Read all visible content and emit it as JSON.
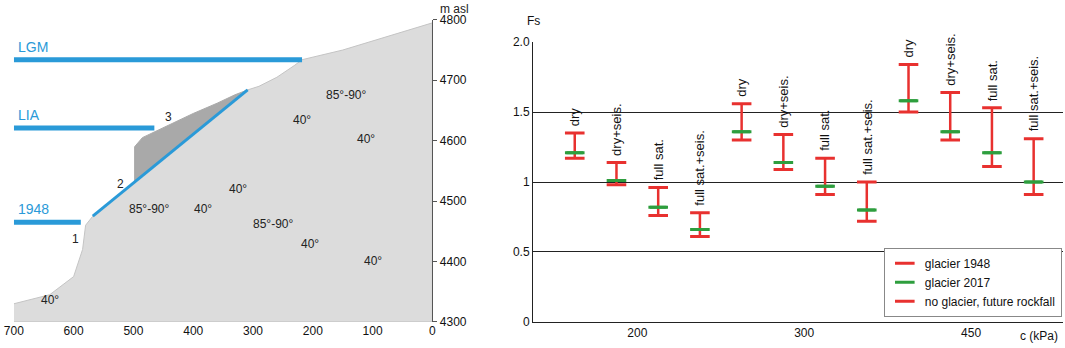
{
  "chart_data": [
    {
      "type": "profile",
      "y_label": "m asl",
      "xlim": [
        700,
        0
      ],
      "xticks": [
        700,
        600,
        500,
        400,
        300,
        200,
        100,
        0
      ],
      "ylim": [
        4300,
        4800
      ],
      "yticks": [
        4300,
        4400,
        4500,
        4600,
        4700,
        4800
      ],
      "terrain": {
        "color": "#dcdcdc",
        "x": [
          700,
          640,
          600,
          585,
          580,
          568,
          498,
          309,
          290,
          260,
          230,
          218,
          150,
          100,
          50,
          0,
          0,
          700
        ],
        "y": [
          4330,
          4345,
          4375,
          4420,
          4460,
          4475,
          4531,
          4684,
          4690,
          4705,
          4725,
          4734,
          4750,
          4765,
          4780,
          4795,
          4300,
          4300
        ]
      },
      "rock_mass": {
        "color": "#a9a9a9",
        "x": [
          498,
          498,
          485,
          470,
          440,
          400,
          360,
          330,
          309
        ],
        "y": [
          4531,
          4590,
          4605,
          4612,
          4625,
          4645,
          4662,
          4676,
          4684
        ]
      },
      "sliding_plane": {
        "color": "#2a9ad8",
        "x": [
          568,
          309
        ],
        "y": [
          4475,
          4684
        ]
      },
      "glaciers": [
        {
          "name": "LGM",
          "color": "#2a9ad8",
          "x": [
            700,
            218
          ],
          "y": 4734
        },
        {
          "name": "LIA",
          "color": "#2a9ad8",
          "x": [
            700,
            465
          ],
          "y": 4621
        },
        {
          "name": "1948",
          "color": "#2a9ad8",
          "x": [
            700,
            588
          ],
          "y": 4465
        }
      ],
      "labels": [
        {
          "text": "1",
          "x": 597,
          "y": 4437
        },
        {
          "text": "2",
          "x": 521,
          "y": 4528
        },
        {
          "text": "3",
          "x": 441,
          "y": 4639
        },
        {
          "text": "40°",
          "x": 218,
          "y": 4634
        },
        {
          "text": "85°-90°",
          "x": 144,
          "y": 4676
        },
        {
          "text": "40°",
          "x": 111,
          "y": 4602
        },
        {
          "text": "40°",
          "x": 325,
          "y": 4520
        },
        {
          "text": "85°-90°",
          "x": 474,
          "y": 4487
        },
        {
          "text": "40°",
          "x": 383,
          "y": 4487
        },
        {
          "text": "85°-90°",
          "x": 267,
          "y": 4462
        },
        {
          "text": "40°",
          "x": 205,
          "y": 4429
        },
        {
          "text": "40°",
          "x": 99,
          "y": 4401
        },
        {
          "text": "40°",
          "x": 639,
          "y": 4337
        }
      ]
    },
    {
      "type": "errorbar",
      "x_label": "c (kPa)",
      "y_label": "Fs",
      "group_labels": [
        "200",
        "300",
        "450"
      ],
      "categories": [
        "dry",
        "dry+seis.",
        "full sat.",
        "full sat.+seis.",
        "dry",
        "dry+seis.",
        "full sat.",
        "full sat.+seis.",
        "dry",
        "dry+seis.",
        "full sat.",
        "full sat.+seis."
      ],
      "series": [
        {
          "name": "glacier 1948",
          "color": "#e8312f",
          "marker": "line-ew",
          "values": [
            1.35,
            1.14,
            0.96,
            0.78,
            1.56,
            1.34,
            1.17,
            1.0,
            1.84,
            1.64,
            1.53,
            1.31
          ]
        },
        {
          "name": "glacier 2017",
          "color": "#2e9e3e",
          "marker": "line-ew",
          "values": [
            1.21,
            1.01,
            0.82,
            0.66,
            1.36,
            1.14,
            0.97,
            0.8,
            1.58,
            1.36,
            1.21,
            1.0
          ]
        },
        {
          "name": "no glacier, future rockfall",
          "color": "#e8312f",
          "marker": "line-ew",
          "values": [
            1.17,
            0.98,
            0.76,
            0.61,
            1.3,
            1.09,
            0.91,
            0.72,
            1.5,
            1.3,
            1.11,
            0.91
          ]
        }
      ],
      "xlim": [
        -1,
        11.7
      ],
      "ylim": [
        0,
        2
      ],
      "yticks": [
        0,
        0.5,
        1,
        1.5,
        {
          "value": 2,
          "label": "2.0"
        }
      ],
      "grid": true,
      "legend": "lower right"
    }
  ]
}
